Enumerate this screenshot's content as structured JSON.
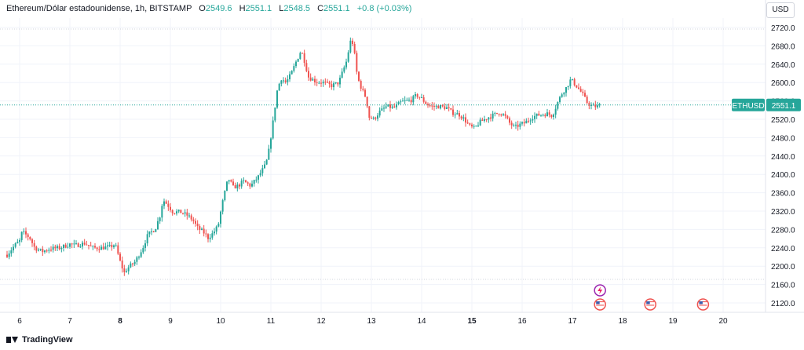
{
  "header": {
    "symbol_desc": "Ethereum/Dólar estadounidense, 1h, BITSTAMP",
    "o_label": "O",
    "o_value": "2549.6",
    "h_label": "H",
    "h_value": "2551.1",
    "l_label": "L",
    "l_value": "2548.5",
    "c_label": "C",
    "c_value": "2551.1",
    "change": "+0.8 (+0.03%)",
    "currency": "USD"
  },
  "footer": {
    "brand": "TradingView"
  },
  "colors": {
    "up": "#26a69a",
    "down": "#ef5350",
    "grid": "#f0f3fa",
    "axis_text": "#131722"
  },
  "chart_data": {
    "type": "candlestick",
    "ticker": "ETHUSD",
    "last_price_label": "2551.1",
    "last_price": 2551.1,
    "y_ticks": [
      "2720.0",
      "2680.0",
      "2640.0",
      "2600.0",
      "2560.0",
      "2520.0",
      "2480.0",
      "2440.0",
      "2400.0",
      "2360.0",
      "2320.0",
      "2280.0",
      "2240.0",
      "2200.0",
      "2160.0",
      "2120.0"
    ],
    "ylim": [
      2100,
      2740
    ],
    "x_ticks": [
      {
        "label": "6",
        "day": 6,
        "bold": false
      },
      {
        "label": "7",
        "day": 7,
        "bold": false
      },
      {
        "label": "8",
        "day": 8,
        "bold": true
      },
      {
        "label": "9",
        "day": 9,
        "bold": false
      },
      {
        "label": "10",
        "day": 10,
        "bold": false
      },
      {
        "label": "11",
        "day": 11,
        "bold": false
      },
      {
        "label": "12",
        "day": 12,
        "bold": false
      },
      {
        "label": "13",
        "day": 13,
        "bold": false
      },
      {
        "label": "14",
        "day": 14,
        "bold": false
      },
      {
        "label": "15",
        "day": 15,
        "bold": true
      },
      {
        "label": "16",
        "day": 16,
        "bold": false
      },
      {
        "label": "17",
        "day": 17,
        "bold": false
      },
      {
        "label": "18",
        "day": 18,
        "bold": false
      },
      {
        "label": "19",
        "day": 19,
        "bold": false
      },
      {
        "label": "20",
        "day": 20,
        "bold": false
      }
    ],
    "price_path": [
      [
        5.75,
        2225
      ],
      [
        5.9,
        2245
      ],
      [
        6.0,
        2255
      ],
      [
        6.05,
        2275
      ],
      [
        6.2,
        2262
      ],
      [
        6.3,
        2240
      ],
      [
        6.45,
        2232
      ],
      [
        6.6,
        2238
      ],
      [
        6.8,
        2240
      ],
      [
        7.0,
        2248
      ],
      [
        7.1,
        2245
      ],
      [
        7.3,
        2250
      ],
      [
        7.45,
        2240
      ],
      [
        7.6,
        2240
      ],
      [
        7.8,
        2242
      ],
      [
        7.9,
        2248
      ],
      [
        8.0,
        2210
      ],
      [
        8.08,
        2185
      ],
      [
        8.15,
        2196
      ],
      [
        8.3,
        2210
      ],
      [
        8.45,
        2240
      ],
      [
        8.55,
        2268
      ],
      [
        8.7,
        2282
      ],
      [
        8.8,
        2312
      ],
      [
        8.85,
        2345
      ],
      [
        8.95,
        2333
      ],
      [
        9.05,
        2318
      ],
      [
        9.2,
        2318
      ],
      [
        9.35,
        2310
      ],
      [
        9.45,
        2300
      ],
      [
        9.55,
        2282
      ],
      [
        9.65,
        2275
      ],
      [
        9.75,
        2262
      ],
      [
        9.85,
        2272
      ],
      [
        9.95,
        2288
      ],
      [
        10.0,
        2318
      ],
      [
        10.05,
        2345
      ],
      [
        10.15,
        2392
      ],
      [
        10.25,
        2372
      ],
      [
        10.35,
        2375
      ],
      [
        10.45,
        2385
      ],
      [
        10.6,
        2375
      ],
      [
        10.75,
        2395
      ],
      [
        10.9,
        2422
      ],
      [
        10.95,
        2445
      ],
      [
        11.05,
        2520
      ],
      [
        11.12,
        2580
      ],
      [
        11.2,
        2610
      ],
      [
        11.3,
        2600
      ],
      [
        11.4,
        2618
      ],
      [
        11.5,
        2645
      ],
      [
        11.6,
        2670
      ],
      [
        11.65,
        2655
      ],
      [
        11.75,
        2612
      ],
      [
        11.9,
        2602
      ],
      [
        12.05,
        2600
      ],
      [
        12.2,
        2593
      ],
      [
        12.35,
        2600
      ],
      [
        12.5,
        2645
      ],
      [
        12.6,
        2698
      ],
      [
        12.65,
        2675
      ],
      [
        12.72,
        2612
      ],
      [
        12.8,
        2588
      ],
      [
        12.9,
        2565
      ],
      [
        12.95,
        2525
      ],
      [
        13.05,
        2520
      ],
      [
        13.15,
        2535
      ],
      [
        13.3,
        2548
      ],
      [
        13.45,
        2545
      ],
      [
        13.6,
        2558
      ],
      [
        13.8,
        2562
      ],
      [
        13.9,
        2573
      ],
      [
        14.0,
        2565
      ],
      [
        14.1,
        2553
      ],
      [
        14.2,
        2548
      ],
      [
        14.35,
        2548
      ],
      [
        14.5,
        2545
      ],
      [
        14.6,
        2535
      ],
      [
        14.75,
        2530
      ],
      [
        14.85,
        2520
      ],
      [
        14.95,
        2505
      ],
      [
        15.05,
        2500
      ],
      [
        15.15,
        2513
      ],
      [
        15.3,
        2523
      ],
      [
        15.45,
        2530
      ],
      [
        15.55,
        2535
      ],
      [
        15.65,
        2528
      ],
      [
        15.75,
        2512
      ],
      [
        15.85,
        2502
      ],
      [
        15.95,
        2508
      ],
      [
        16.05,
        2512
      ],
      [
        16.2,
        2525
      ],
      [
        16.35,
        2530
      ],
      [
        16.5,
        2532
      ],
      [
        16.6,
        2528
      ],
      [
        16.7,
        2555
      ],
      [
        16.8,
        2578
      ],
      [
        16.9,
        2592
      ],
      [
        16.95,
        2605
      ],
      [
        17.0,
        2603
      ],
      [
        17.1,
        2590
      ],
      [
        17.2,
        2575
      ],
      [
        17.3,
        2555
      ],
      [
        17.4,
        2548
      ],
      [
        17.5,
        2548
      ],
      [
        17.56,
        2551.1
      ]
    ],
    "events": [
      {
        "day": 17.55,
        "row": 0,
        "icon": "lightning-icon"
      },
      {
        "day": 17.55,
        "row": 1,
        "icon": "us-flag-icon"
      },
      {
        "day": 18.55,
        "row": 1,
        "icon": "us-flag-icon"
      },
      {
        "day": 19.6,
        "row": 1,
        "icon": "us-flag-icon"
      }
    ]
  }
}
